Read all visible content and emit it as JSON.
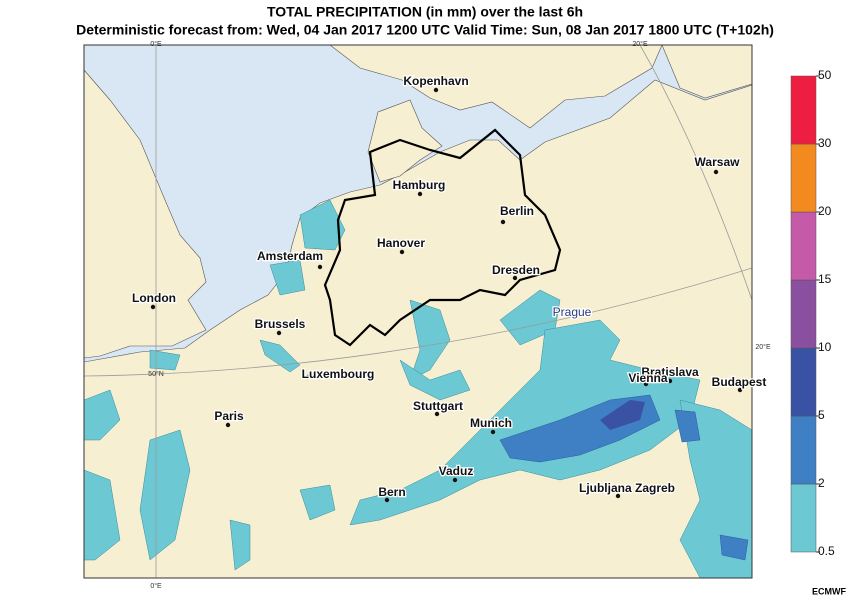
{
  "title": "TOTAL PRECIPITATION (in mm) over the last 6h",
  "subtitle": "Deterministic forecast from: Wed, 04 Jan 2017 1200 UTC   Valid Time: Sun, 08 Jan 2017 1800 UTC (T+102h)",
  "cities": [
    {
      "name": "Kopenhavn"
    },
    {
      "name": "Hamburg"
    },
    {
      "name": "Berlin"
    },
    {
      "name": "Hanover"
    },
    {
      "name": "Amsterdam"
    },
    {
      "name": "Dresden"
    },
    {
      "name": "London"
    },
    {
      "name": "Prague"
    },
    {
      "name": "Brussels"
    },
    {
      "name": "Luxembourg"
    },
    {
      "name": "Bratislava"
    },
    {
      "name": "Vienna"
    },
    {
      "name": "Budapest"
    },
    {
      "name": "Warsaw"
    },
    {
      "name": "Paris"
    },
    {
      "name": "Stuttgart"
    },
    {
      "name": "Munich"
    },
    {
      "name": "Vaduz"
    },
    {
      "name": "Bern"
    },
    {
      "name": "Ljubljana Zagreb"
    }
  ],
  "grid_labels": [
    "0°E",
    "0°E",
    "20°E",
    "20°E",
    "50°N"
  ],
  "colorbar": {
    "ticks": [
      0.5,
      2,
      5,
      10,
      15,
      20,
      30,
      50
    ],
    "colors": [
      "#6cc8d3",
      "#3f7fc4",
      "#3a52a4",
      "#8b4fa0",
      "#c55aa9",
      "#f38a20",
      "#ee1e42"
    ]
  },
  "credit": "ECMWF"
}
